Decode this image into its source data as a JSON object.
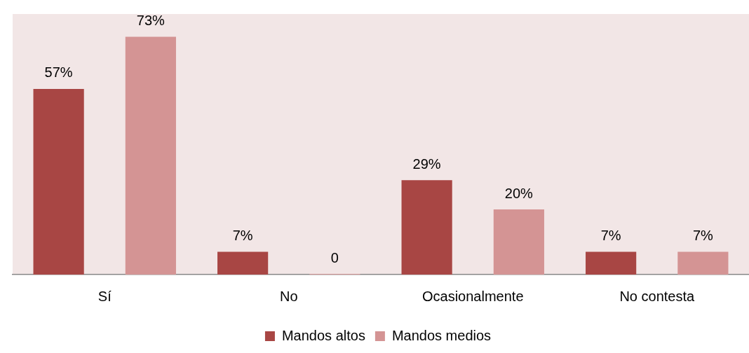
{
  "chart_data": {
    "type": "bar",
    "categories": [
      "Sí",
      "No",
      "Ocasionalmente",
      "No contesta"
    ],
    "series": [
      {
        "name": "Mandos altos",
        "color": "#a84644",
        "values": [
          57,
          7,
          29,
          7
        ],
        "value_labels": [
          "57%",
          "7%",
          "29%",
          "7%"
        ]
      },
      {
        "name": "Mandos medios",
        "color": "#d49494",
        "values": [
          73,
          0,
          20,
          7
        ],
        "value_labels": [
          "73%",
          "0",
          "20%",
          "7%"
        ]
      }
    ],
    "grid": false,
    "legend": "bottom",
    "tick_labels": "x"
  }
}
